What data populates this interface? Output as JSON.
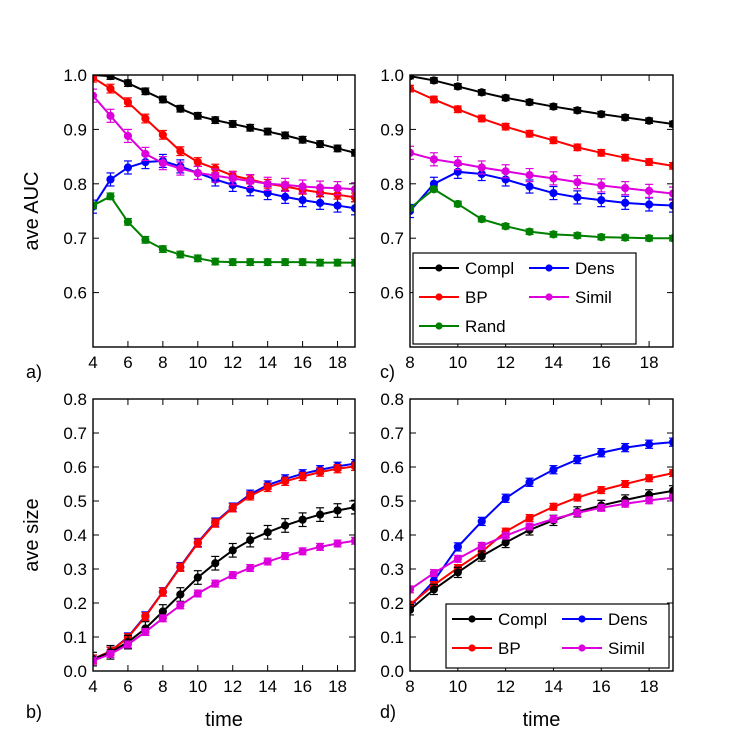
{
  "colors": {
    "Compl": "#000000",
    "Dens": "#0000ff",
    "BP": "#ff0000",
    "Simil": "#dd00dd",
    "Rand": "#008000"
  },
  "chart_data": [
    {
      "panel_label": "a)",
      "type": "line",
      "ylabel": "ave AUC",
      "xlabel": "",
      "xlim": [
        4,
        19
      ],
      "ylim": [
        0.5,
        1.0
      ],
      "xticks": [
        "4",
        "6",
        "8",
        "10",
        "12",
        "14",
        "16",
        "18"
      ],
      "yticks": [
        "0.6",
        "0.7",
        "0.8",
        "0.9",
        "1.0"
      ],
      "legend": null,
      "series": [
        {
          "name": "Compl",
          "x": [
            4,
            5,
            6,
            7,
            8,
            9,
            10,
            11,
            12,
            13,
            14,
            15,
            16,
            17,
            18,
            19
          ],
          "y": [
            1.0,
            0.998,
            0.985,
            0.97,
            0.955,
            0.938,
            0.925,
            0.917,
            0.91,
            0.903,
            0.896,
            0.889,
            0.881,
            0.873,
            0.865,
            0.857
          ],
          "err": 0.006
        },
        {
          "name": "Dens",
          "x": [
            4,
            5,
            6,
            7,
            8,
            9,
            10,
            11,
            12,
            13,
            14,
            15,
            16,
            17,
            18,
            19
          ],
          "y": [
            0.758,
            0.808,
            0.83,
            0.84,
            0.842,
            0.832,
            0.82,
            0.808,
            0.798,
            0.79,
            0.783,
            0.776,
            0.77,
            0.765,
            0.76,
            0.755
          ],
          "err": 0.012
        },
        {
          "name": "BP",
          "x": [
            4,
            5,
            6,
            7,
            8,
            9,
            10,
            11,
            12,
            13,
            14,
            15,
            16,
            17,
            18,
            19
          ],
          "y": [
            0.995,
            0.975,
            0.95,
            0.92,
            0.89,
            0.86,
            0.84,
            0.828,
            0.815,
            0.808,
            0.8,
            0.795,
            0.789,
            0.784,
            0.78,
            0.775
          ],
          "err": 0.008
        },
        {
          "name": "Simil",
          "x": [
            4,
            5,
            6,
            7,
            8,
            9,
            10,
            11,
            12,
            13,
            14,
            15,
            16,
            17,
            18,
            19
          ],
          "y": [
            0.962,
            0.925,
            0.888,
            0.855,
            0.838,
            0.828,
            0.82,
            0.815,
            0.81,
            0.805,
            0.8,
            0.798,
            0.795,
            0.793,
            0.792,
            0.79
          ],
          "err": 0.012
        },
        {
          "name": "Rand",
          "x": [
            4,
            5,
            6,
            7,
            8,
            9,
            10,
            11,
            12,
            13,
            14,
            15,
            16,
            17,
            18,
            19
          ],
          "y": [
            0.76,
            0.777,
            0.73,
            0.697,
            0.68,
            0.67,
            0.663,
            0.657,
            0.656,
            0.656,
            0.656,
            0.656,
            0.656,
            0.655,
            0.655,
            0.655
          ],
          "err": 0.006
        }
      ]
    },
    {
      "panel_label": "c)",
      "type": "line",
      "ylabel": "",
      "xlabel": "",
      "xlim": [
        8,
        19
      ],
      "ylim": [
        0.5,
        1.0
      ],
      "xticks": [
        "8",
        "10",
        "12",
        "14",
        "16",
        "18"
      ],
      "yticks": [
        "0.6",
        "0.7",
        "0.8",
        "0.9",
        "1.0"
      ],
      "legend": {
        "placement": "bottom-left",
        "entries": [
          "Compl",
          "Dens",
          "BP",
          "Simil",
          "Rand"
        ]
      },
      "series": [
        {
          "name": "Compl",
          "x": [
            8,
            9,
            10,
            11,
            12,
            13,
            14,
            15,
            16,
            17,
            18,
            19
          ],
          "y": [
            0.998,
            0.99,
            0.979,
            0.968,
            0.958,
            0.95,
            0.942,
            0.935,
            0.928,
            0.922,
            0.916,
            0.91
          ],
          "err": 0.005
        },
        {
          "name": "Dens",
          "x": [
            8,
            9,
            10,
            11,
            12,
            13,
            14,
            15,
            16,
            17,
            18,
            19
          ],
          "y": [
            0.75,
            0.8,
            0.822,
            0.818,
            0.808,
            0.795,
            0.783,
            0.775,
            0.77,
            0.765,
            0.762,
            0.76
          ],
          "err": 0.012
        },
        {
          "name": "BP",
          "x": [
            8,
            9,
            10,
            11,
            12,
            13,
            14,
            15,
            16,
            17,
            18,
            19
          ],
          "y": [
            0.975,
            0.955,
            0.937,
            0.92,
            0.905,
            0.892,
            0.88,
            0.867,
            0.857,
            0.848,
            0.84,
            0.833
          ],
          "err": 0.006
        },
        {
          "name": "Simil",
          "x": [
            8,
            9,
            10,
            11,
            12,
            13,
            14,
            15,
            16,
            17,
            18,
            19
          ],
          "y": [
            0.857,
            0.845,
            0.838,
            0.83,
            0.823,
            0.816,
            0.81,
            0.803,
            0.797,
            0.792,
            0.787,
            0.782
          ],
          "err": 0.012
        },
        {
          "name": "Rand",
          "x": [
            8,
            9,
            10,
            11,
            12,
            13,
            14,
            15,
            16,
            17,
            18,
            19
          ],
          "y": [
            0.755,
            0.79,
            0.763,
            0.735,
            0.722,
            0.712,
            0.707,
            0.705,
            0.702,
            0.701,
            0.7,
            0.7
          ],
          "err": 0.005
        }
      ]
    },
    {
      "panel_label": "b)",
      "type": "line",
      "ylabel": "ave size",
      "xlabel": "time",
      "xlim": [
        4,
        19
      ],
      "ylim": [
        0.0,
        0.8
      ],
      "xticks": [
        "4",
        "6",
        "8",
        "10",
        "12",
        "14",
        "16",
        "18"
      ],
      "yticks": [
        "0.0",
        "0.1",
        "0.2",
        "0.3",
        "0.4",
        "0.5",
        "0.6",
        "0.7",
        "0.8"
      ],
      "legend": null,
      "series": [
        {
          "name": "Dens",
          "x": [
            4,
            5,
            6,
            7,
            8,
            9,
            10,
            11,
            12,
            13,
            14,
            15,
            16,
            17,
            18,
            19
          ],
          "y": [
            0.035,
            0.058,
            0.1,
            0.162,
            0.233,
            0.307,
            0.378,
            0.438,
            0.482,
            0.52,
            0.547,
            0.565,
            0.58,
            0.592,
            0.602,
            0.61
          ],
          "err": 0.012
        },
        {
          "name": "BP",
          "x": [
            4,
            5,
            6,
            7,
            8,
            9,
            10,
            11,
            12,
            13,
            14,
            15,
            16,
            17,
            18,
            19
          ],
          "y": [
            0.035,
            0.058,
            0.098,
            0.16,
            0.232,
            0.305,
            0.376,
            0.435,
            0.48,
            0.515,
            0.54,
            0.558,
            0.572,
            0.585,
            0.595,
            0.602
          ],
          "err": 0.012
        },
        {
          "name": "Compl",
          "x": [
            4,
            5,
            6,
            7,
            8,
            9,
            10,
            11,
            12,
            13,
            14,
            15,
            16,
            17,
            18,
            19
          ],
          "y": [
            0.035,
            0.055,
            0.085,
            0.125,
            0.175,
            0.225,
            0.275,
            0.317,
            0.355,
            0.385,
            0.408,
            0.428,
            0.445,
            0.46,
            0.472,
            0.482
          ],
          "err": 0.02
        },
        {
          "name": "Simil",
          "x": [
            4,
            5,
            6,
            7,
            8,
            9,
            10,
            11,
            12,
            13,
            14,
            15,
            16,
            17,
            18,
            19
          ],
          "y": [
            0.03,
            0.05,
            0.078,
            0.115,
            0.155,
            0.193,
            0.228,
            0.257,
            0.282,
            0.303,
            0.322,
            0.338,
            0.352,
            0.365,
            0.375,
            0.383
          ],
          "err": 0.01
        }
      ]
    },
    {
      "panel_label": "d)",
      "type": "line",
      "ylabel": "",
      "xlabel": "time",
      "xlim": [
        8,
        19
      ],
      "ylim": [
        0.0,
        0.8
      ],
      "xticks": [
        "8",
        "10",
        "12",
        "14",
        "16",
        "18"
      ],
      "yticks": [
        "0.0",
        "0.1",
        "0.2",
        "0.3",
        "0.4",
        "0.5",
        "0.6",
        "0.7",
        "0.8"
      ],
      "legend": {
        "placement": "bottom-right",
        "entries": [
          "Compl",
          "Dens",
          "BP",
          "Simil"
        ]
      },
      "series": [
        {
          "name": "Dens",
          "x": [
            8,
            9,
            10,
            11,
            12,
            13,
            14,
            15,
            16,
            17,
            18,
            19
          ],
          "y": [
            0.19,
            0.265,
            0.365,
            0.44,
            0.508,
            0.555,
            0.592,
            0.622,
            0.642,
            0.657,
            0.667,
            0.673
          ],
          "err": 0.012
        },
        {
          "name": "BP",
          "x": [
            8,
            9,
            10,
            11,
            12,
            13,
            14,
            15,
            16,
            17,
            18,
            19
          ],
          "y": [
            0.195,
            0.253,
            0.303,
            0.35,
            0.41,
            0.45,
            0.483,
            0.51,
            0.532,
            0.55,
            0.567,
            0.582
          ],
          "err": 0.01
        },
        {
          "name": "Compl",
          "x": [
            8,
            9,
            10,
            11,
            12,
            13,
            14,
            15,
            16,
            17,
            18,
            19
          ],
          "y": [
            0.18,
            0.24,
            0.29,
            0.338,
            0.378,
            0.415,
            0.443,
            0.468,
            0.487,
            0.503,
            0.518,
            0.53
          ],
          "err": 0.015
        },
        {
          "name": "Simil",
          "x": [
            8,
            9,
            10,
            11,
            12,
            13,
            14,
            15,
            16,
            17,
            18,
            19
          ],
          "y": [
            0.24,
            0.288,
            0.33,
            0.368,
            0.398,
            0.425,
            0.447,
            0.465,
            0.48,
            0.492,
            0.502,
            0.51
          ],
          "err": 0.01
        }
      ]
    }
  ]
}
